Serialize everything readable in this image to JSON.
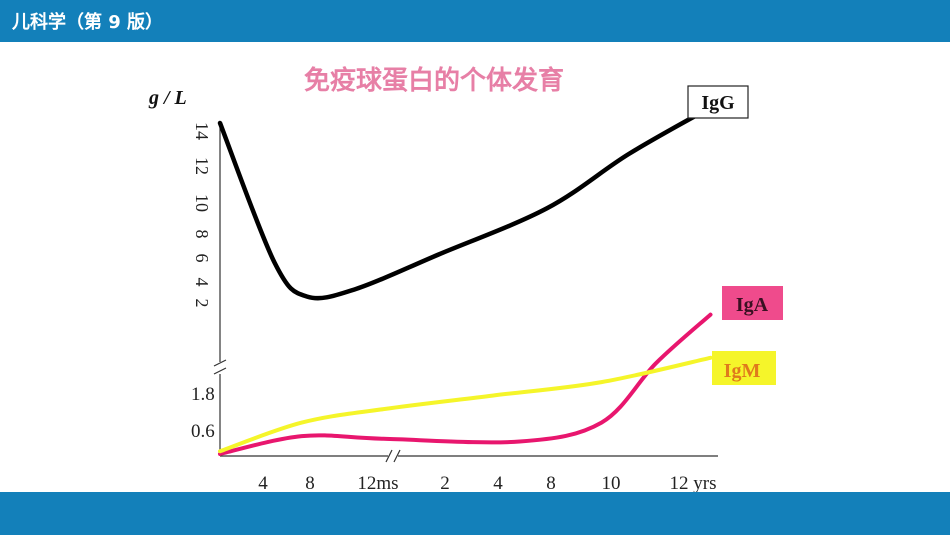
{
  "header": {
    "book_title": "儿科学（第 9 版）"
  },
  "slide": {
    "title": "免疫球蛋白的个体发育"
  },
  "colors": {
    "bar": "#1380ba",
    "title": "#e77fa6",
    "igg": "#000000",
    "iga": "#e8166e",
    "igm": "#f5f52a",
    "iga_label_bg": "#ef4b8c",
    "igm_label_bg": "#f5f52a",
    "igm_label_text": "#e07a1c"
  },
  "chart_data": {
    "type": "line",
    "title": "免疫球蛋白的个体发育",
    "ylabel": "g / L",
    "yticks_upper": [
      "14",
      "12",
      "10",
      "8",
      "6",
      "4",
      "2"
    ],
    "yticks_lower": [
      "1.8",
      "0.6"
    ],
    "xticks": [
      "4",
      "8",
      "12ms",
      "2",
      "4",
      "8",
      "10",
      "12 yrs"
    ],
    "axis_break": true,
    "series": [
      {
        "name": "IgG",
        "label_position": "top-right",
        "points": [
          [
            0,
            14
          ],
          [
            1,
            5
          ],
          [
            1.6,
            2.8
          ],
          [
            2.5,
            3.3
          ],
          [
            4,
            5.5
          ],
          [
            6,
            8.5
          ],
          [
            7.5,
            12
          ],
          [
            9,
            15
          ]
        ]
      },
      {
        "name": "IgA",
        "label_position": "right",
        "points": [
          [
            0,
            0.02
          ],
          [
            1.5,
            0.35
          ],
          [
            3,
            0.3
          ],
          [
            5.5,
            0.25
          ],
          [
            7,
            0.6
          ],
          [
            8,
            1.7
          ],
          [
            9,
            2.6
          ]
        ]
      },
      {
        "name": "IgM",
        "label_position": "right",
        "points": [
          [
            0,
            0.07
          ],
          [
            1.5,
            0.6
          ],
          [
            3,
            0.85
          ],
          [
            5,
            1.1
          ],
          [
            7,
            1.35
          ],
          [
            9,
            1.8
          ]
        ]
      }
    ]
  }
}
